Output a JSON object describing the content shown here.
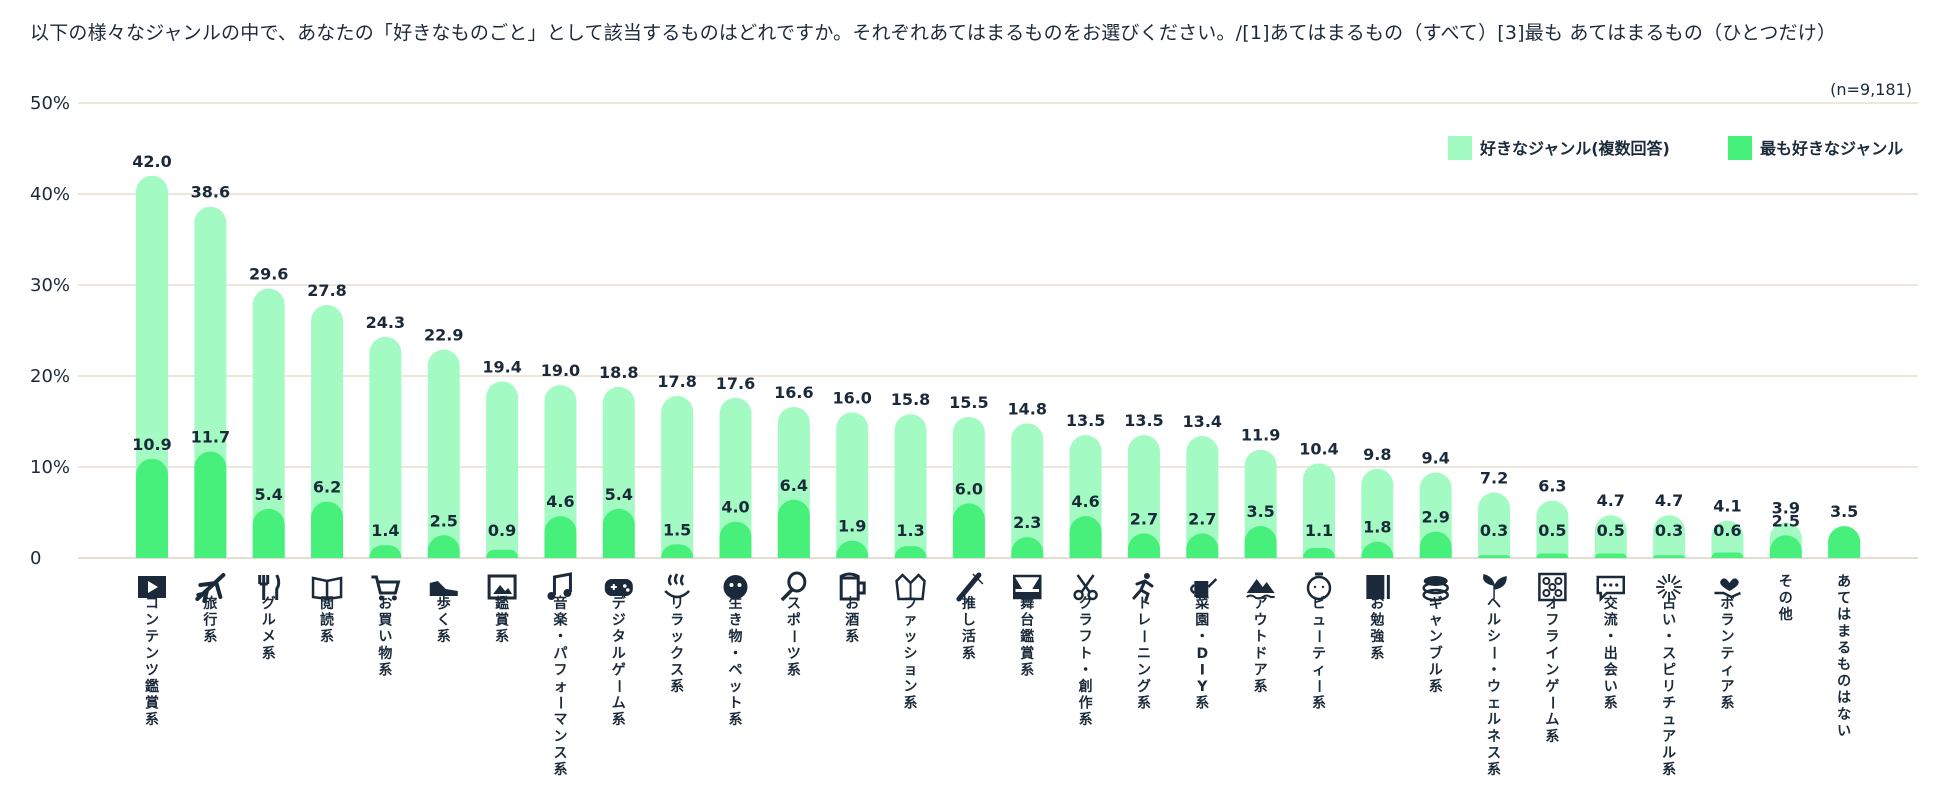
{
  "title": "以下の様々なジャンルの中で、あなたの「好きなものごと」として該当するものはどれですか。それぞれあてはまるものをお選びください。/[1]あてはまるもの（すべて）[3]最も あてはまるもの（ひとつだけ）",
  "sample_note": "(n=9,181)",
  "colors": {
    "light": "#a3fbc3",
    "dark": "#47f07a",
    "grid": "#d8cdb8",
    "text": "#1b2a3a"
  },
  "chart_data": {
    "type": "bar",
    "title": "以下の様々なジャンルの中で、あなたの「好きなものごと」として該当するものはどれですか。",
    "ylim": [
      0,
      50
    ],
    "yticks": [
      "0",
      "10%",
      "20%",
      "30%",
      "40%",
      "50%"
    ],
    "grid": true,
    "legend_position": "top-right",
    "categories": [
      "コンテンツ鑑賞系",
      "旅行系",
      "グルメ系",
      "閲読系",
      "お買い物系",
      "歩く系",
      "鑑賞系",
      "音楽・パフォーマンス系",
      "デジタルゲーム系",
      "リラックス系",
      "生き物・ペット系",
      "スポーツ系",
      "お酒系",
      "ファッション系",
      "推し活系",
      "舞台鑑賞系",
      "クラフト・創作系",
      "トレーニング系",
      "菜園・DIY系",
      "アウトドア系",
      "ビューティー系",
      "お勉強系",
      "ギャンブル系",
      "ヘルシー・ウェルネス系",
      "オフラインゲーム系",
      "交流・出会い系",
      "占い・スピリチュアル系",
      "ボランティア系",
      "その他",
      "あてはまるものはない"
    ],
    "icons": [
      "film-icon",
      "airplane-icon",
      "cutlery-icon",
      "book-icon",
      "cart-icon",
      "shoe-icon",
      "picture-icon",
      "music-note-icon",
      "gamepad-icon",
      "hot-spring-icon",
      "pet-icon",
      "racket-icon",
      "beer-icon",
      "jacket-icon",
      "glow-stick-icon",
      "stage-icon",
      "scissors-icon",
      "runner-icon",
      "watering-can-icon",
      "mountain-icon",
      "face-icon",
      "notebook-icon",
      "coins-icon",
      "leaf-icon",
      "board-game-icon",
      "chat-icon",
      "sparkle-icon",
      "heart-hand-icon",
      "",
      ""
    ],
    "series": [
      {
        "name": "好きなジャンル(複数回答)",
        "values": [
          42.0,
          38.6,
          29.6,
          27.8,
          24.3,
          22.9,
          19.4,
          19.0,
          18.8,
          17.8,
          17.6,
          16.6,
          16.0,
          15.8,
          15.5,
          14.8,
          13.5,
          13.5,
          13.4,
          11.9,
          10.4,
          9.8,
          9.4,
          7.2,
          6.3,
          4.7,
          4.7,
          4.1,
          3.9,
          3.5
        ],
        "labels": [
          "42.0",
          "38.6",
          "29.6",
          "27.8",
          "24.3",
          "22.9",
          "19.4",
          "19.0",
          "18.8",
          "17.8",
          "17.6",
          "16.6",
          "16.0",
          "15.8",
          "15.5",
          "14.8",
          "13.5",
          "13.5",
          "13.4",
          "11.9",
          "10.4",
          "9.8",
          "9.4",
          "7.2",
          "6.3",
          "4.7",
          "4.7",
          "4.1",
          "3.9",
          "3.5"
        ]
      },
      {
        "name": "最も好きなジャンル",
        "values": [
          10.9,
          11.7,
          5.4,
          6.2,
          1.4,
          2.5,
          0.9,
          4.6,
          5.4,
          1.5,
          4.0,
          6.4,
          1.9,
          1.3,
          6.0,
          2.3,
          4.6,
          2.7,
          2.7,
          3.5,
          1.1,
          1.8,
          2.9,
          0.3,
          0.5,
          0.5,
          0.3,
          0.6,
          2.5,
          3.5
        ],
        "labels": [
          "10.9",
          "11.7",
          "5.4",
          "6.2",
          "1.4",
          "2.5",
          "0.9",
          "4.6",
          "5.4",
          "1.5",
          "4.0",
          "6.4",
          "1.9",
          "1.3",
          "6.0",
          "2.3",
          "4.6",
          "2.7",
          "2.7",
          "3.5",
          "1.1",
          "1.8",
          "2.9",
          "0.3",
          "0.5",
          "0.5",
          "0.3",
          "0.6",
          "2.5",
          ""
        ]
      }
    ]
  }
}
